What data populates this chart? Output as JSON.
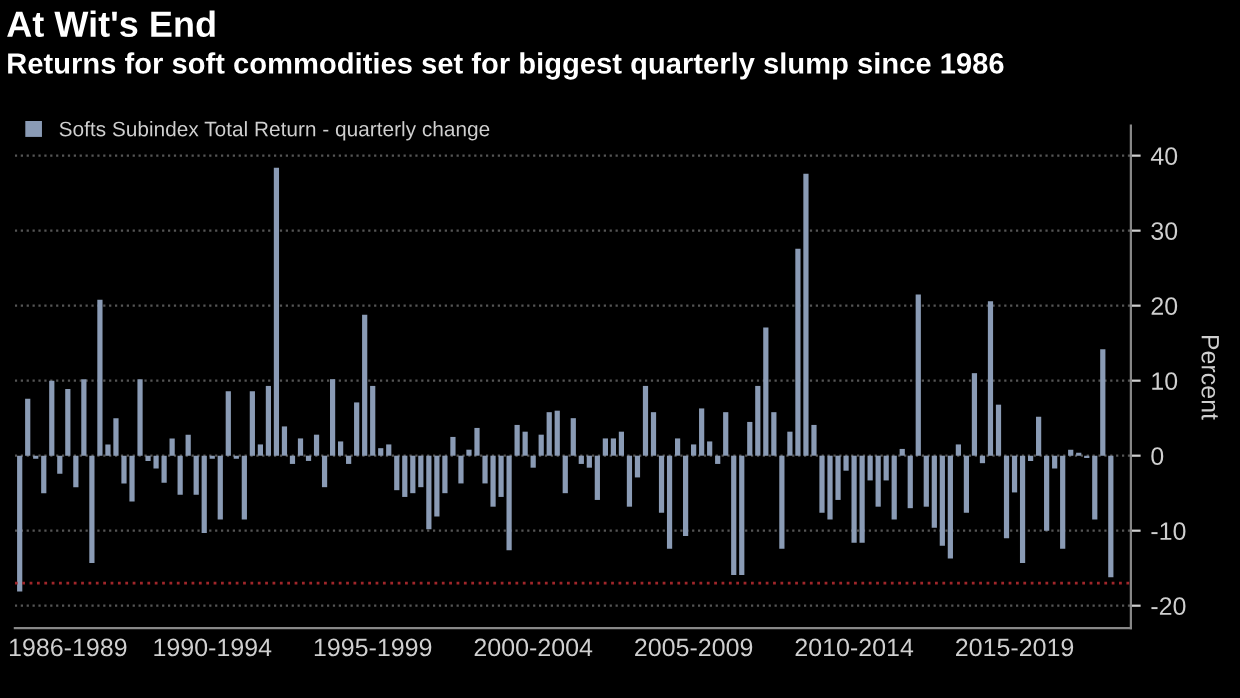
{
  "chart_data": {
    "type": "bar",
    "title": "At Wit's End",
    "subtitle": "Returns for soft commodities set for biggest quarterly slump since 1986",
    "ylabel": "Percent",
    "categories": [
      null,
      null,
      null,
      null,
      null,
      null,
      "1986-1989",
      null,
      null,
      null,
      null,
      null,
      null,
      null,
      null,
      null,
      null,
      null,
      null,
      null,
      null,
      null,
      null,
      null,
      "1990-1994",
      null,
      null,
      null,
      null,
      null,
      null,
      null,
      null,
      null,
      null,
      null,
      null,
      null,
      null,
      null,
      null,
      null,
      null,
      null,
      "1995-1999",
      null,
      null,
      null,
      null,
      null,
      null,
      null,
      null,
      null,
      null,
      null,
      null,
      null,
      null,
      null,
      null,
      null,
      null,
      null,
      "2000-2004",
      null,
      null,
      null,
      null,
      null,
      null,
      null,
      null,
      null,
      null,
      null,
      null,
      null,
      null,
      null,
      null,
      null,
      null,
      null,
      "2005-2009",
      null,
      null,
      null,
      null,
      null,
      null,
      null,
      null,
      null,
      null,
      null,
      null,
      null,
      null,
      null,
      null,
      null,
      null,
      null,
      "2010-2014",
      null,
      null,
      null,
      null,
      null,
      null,
      null,
      null,
      null,
      null,
      null,
      null,
      null,
      null,
      null,
      null,
      null,
      null,
      null,
      "2015-2019",
      null,
      null,
      null,
      null,
      null,
      null,
      null,
      null,
      null,
      null,
      null,
      null
    ],
    "series": [
      {
        "name": "Softs Subindex Total Return - quarterly change",
        "color": "#8a9bb5",
        "values": [
          -18.1,
          7.6,
          -0.4,
          -5,
          10,
          -2.4,
          8.9,
          -4.2,
          10.2,
          -14.3,
          20.8,
          1.5,
          5,
          -3.7,
          -6.1,
          10.2,
          -0.7,
          -1.7,
          -3.6,
          2.3,
          -5.2,
          2.8,
          -5.2,
          -10.3,
          -0.4,
          -8.5,
          8.6,
          -0.4,
          -8.5,
          8.6,
          1.5,
          9.3,
          38.4,
          3.9,
          -1.1,
          2.3,
          -0.7,
          2.8,
          -4.2,
          10.2,
          1.9,
          -1.1,
          7.1,
          18.8,
          9.3,
          1,
          1.5,
          -4.6,
          -5.5,
          -5,
          -4.2,
          -9.8,
          -8.1,
          -5,
          2.5,
          -3.7,
          0.8,
          3.7,
          -3.7,
          -6.8,
          -5.5,
          -12.6,
          4.1,
          3.2,
          -1.6,
          2.8,
          5.8,
          6,
          -5,
          5,
          -1.1,
          -1.6,
          -5.9,
          2.3,
          2.3,
          3.2,
          -6.8,
          -2.9,
          9.3,
          5.8,
          -7.6,
          -12.4,
          2.3,
          -10.7,
          1.5,
          6.3,
          1.9,
          -1.1,
          5.8,
          -15.9,
          -15.9,
          4.5,
          9.3,
          17.1,
          5.8,
          -12.4,
          3.2,
          27.6,
          37.6,
          4.1,
          -7.6,
          -8.5,
          -5.9,
          -2,
          -11.6,
          -11.6,
          -3.3,
          -6.8,
          -3.3,
          -8.5,
          0.9,
          -7,
          21.5,
          -6.8,
          -9.6,
          -12,
          -13.7,
          1.5,
          -7.6,
          11,
          -1,
          20.6,
          6.8,
          -11,
          -4.9,
          -14.3,
          -0.7,
          5.2,
          -10,
          -1.7,
          -12.4,
          0.8,
          0.4,
          -0.3,
          -8.5,
          14.2,
          -16.2
        ]
      }
    ],
    "ylim": [
      -23,
      44
    ],
    "yticks": [
      -20,
      -10,
      0,
      10,
      20,
      30,
      40
    ],
    "ref_lines": [
      {
        "axis": "y",
        "value": -17,
        "color": "#a0262a",
        "line_style": "dotted"
      }
    ],
    "grid": true,
    "legend": "top left"
  }
}
